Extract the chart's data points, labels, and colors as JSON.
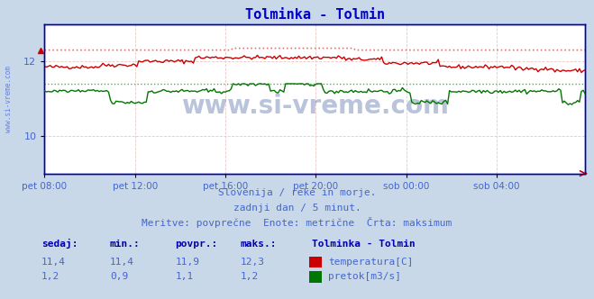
{
  "title": "Tolminka - Tolmin",
  "title_color": "#0000cc",
  "bg_color": "#c8d8e8",
  "plot_bg_color": "#ffffff",
  "xlabel_ticks": [
    "pet 08:00",
    "pet 12:00",
    "pet 16:00",
    "pet 20:00",
    "sob 00:00",
    "sob 04:00"
  ],
  "tick_positions": [
    0,
    48,
    96,
    144,
    192,
    240
  ],
  "n_points": 288,
  "ylim_temp": [
    9.0,
    13.0
  ],
  "yticks_temp": [
    10,
    12
  ],
  "ylim_flow": [
    0.0,
    2.0
  ],
  "grid_color": "#e8c8c8",
  "temp_line_color": "#cc0000",
  "temp_max_line_color": "#ff6666",
  "flow_line_color": "#007700",
  "flow_max_line_color": "#55aa55",
  "border_left_color": "#0000aa",
  "border_bottom_color": "#0000aa",
  "watermark": "www.si-vreme.com",
  "watermark_color": "#1a3a8a",
  "sub_text1": "Slovenija / reke in morje.",
  "sub_text2": "zadnji dan / 5 minut.",
  "sub_text3": "Meritve: povprečne  Enote: metrične  Črta: maksimum",
  "legend_title": "Tolminka - Tolmin",
  "legend_label1": "temperatura[C]",
  "legend_label2": "pretok[m3/s]",
  "table_headers": [
    "sedaj:",
    "min.:",
    "povpr.:",
    "maks.:"
  ],
  "table_row1": [
    "11,4",
    "11,4",
    "11,9",
    "12,3"
  ],
  "table_row2": [
    "1,2",
    "0,9",
    "1,1",
    "1,2"
  ],
  "text_color_bold": "#0000aa",
  "text_color": "#4466cc",
  "sidebar_text": "www.si-vreme.com"
}
